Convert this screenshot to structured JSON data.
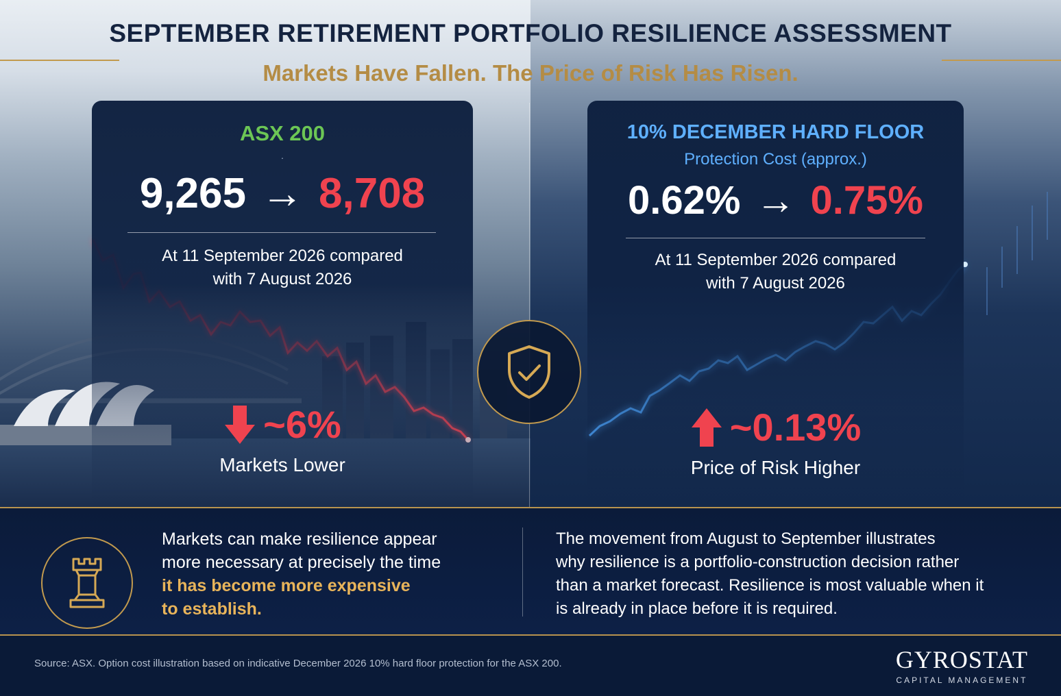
{
  "header": {
    "title": "SEPTEMBER RETIREMENT PORTFOLIO RESILIENCE ASSESSMENT",
    "subtitle": "Markets Have Fallen. The Price of Risk Has Risen."
  },
  "left_card": {
    "heading": "ASX 200",
    "dot": ".",
    "from_value": "9,265",
    "arrow": "→",
    "to_value": "8,708",
    "desc_line1": "At 11 September 2026 compared",
    "desc_line2": "with 7 August 2026",
    "change_value": "~6%",
    "change_direction": "down",
    "change_label": "Markets Lower"
  },
  "right_card": {
    "heading": "10% DECEMBER HARD FLOOR",
    "subheading": "Protection Cost (approx.)",
    "from_value": "0.62%",
    "arrow": "→",
    "to_value": "0.75%",
    "desc_line1": "At 11 September 2026 compared",
    "desc_line2": "with 7 August 2026",
    "change_value": "~0.13%",
    "change_direction": "up",
    "change_label": "Price of Risk Higher"
  },
  "band": {
    "left_line1": "Markets can make resilience appear",
    "left_line2": "more necessary at precisely the time",
    "left_highlight1": "it has become more expensive",
    "left_highlight2": "to establish.",
    "right_line1": "The movement from August to September illustrates",
    "right_line2": "why resilience is a portfolio-construction decision rather",
    "right_line3": "than a market forecast. Resilience is most valuable when it",
    "right_line4": "is already in place before it is required."
  },
  "footer": {
    "source": "Source: ASX. Option cost illustration based on indicative December 2026 10% hard floor protection for the ASX 200.",
    "brand_name": "GYROSTAT",
    "brand_sub": "CAPITAL MANAGEMENT"
  },
  "icons": {
    "shield": "shield-check-icon",
    "rook": "chess-rook-icon",
    "down_arrow": "arrow-down-icon",
    "up_arrow": "arrow-up-icon"
  },
  "colors": {
    "navy": "#0c1c3a",
    "gold": "#c29a4e",
    "red": "#f0434f",
    "green": "#6cc655",
    "blue": "#5fb0ff",
    "highlight": "#e8b45a"
  }
}
